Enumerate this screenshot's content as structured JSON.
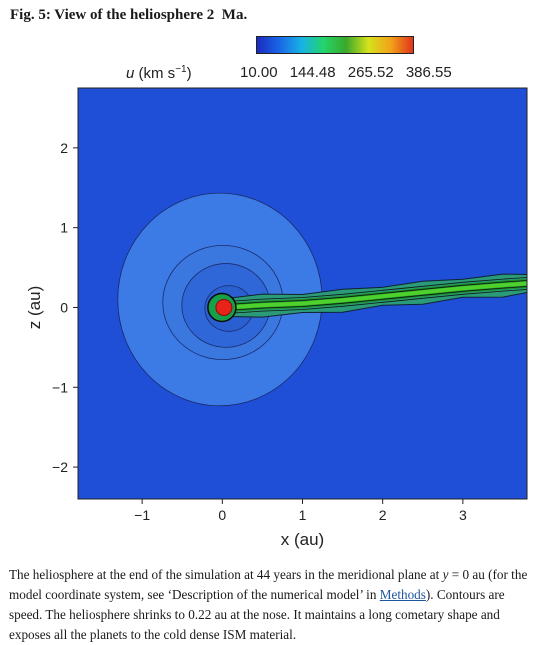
{
  "figure": {
    "title": "Fig. 5: View of the heliosphere 2  Ma."
  },
  "colorbar": {
    "variable": "u",
    "unit_prefix": "(km s",
    "unit_exp": "−1",
    "unit_suffix": ")",
    "ticks": [
      "10.00",
      "144.48",
      "265.52",
      "386.55"
    ],
    "colors": [
      "#1b2bbf",
      "#1a66e6",
      "#18b3e6",
      "#24d46a",
      "#3aa82b",
      "#d6e21c",
      "#f2a21a",
      "#e0341a"
    ]
  },
  "chart_data": {
    "type": "heatmap",
    "title": "",
    "xlabel": "x (au)",
    "ylabel": "z (au)",
    "xlim": [
      -1.8,
      3.8
    ],
    "ylim": [
      -2.4,
      2.75
    ],
    "xticks": [
      "−1",
      "0",
      "1",
      "2",
      "3"
    ],
    "xtick_values": [
      -1,
      0,
      1,
      2,
      3
    ],
    "yticks": [
      "−2",
      "−1",
      "0",
      "1",
      "2"
    ],
    "ytick_values": [
      -2,
      -1,
      0,
      1,
      2
    ],
    "background_color": "#1e4fd6",
    "sun_center": [
      0.02,
      0.0
    ],
    "sun_radius": 0.1,
    "tail_centerline": [
      [
        0.05,
        0.0
      ],
      [
        0.5,
        0.03
      ],
      [
        1.0,
        0.05
      ],
      [
        1.5,
        0.09
      ],
      [
        2.0,
        0.14
      ],
      [
        2.5,
        0.19
      ],
      [
        3.0,
        0.24
      ],
      [
        3.5,
        0.28
      ],
      [
        3.8,
        0.3
      ]
    ],
    "inner_shells_radius_au": [
      0.3,
      0.55,
      0.75,
      1.3
    ]
  },
  "caption": {
    "part1": "The heliosphere at the end of the simulation at 44 years in the meridional plane at ",
    "part2": "y",
    "part3": " = 0 au (for the model coordinate system, see ‘Description of the numerical model’ in ",
    "link": "Methods",
    "part4": "). Contours are speed. The heliosphere shrinks to 0.22 au at the nose. It maintains a long cometary shape and exposes all the planets to the cold dense ISM material."
  }
}
